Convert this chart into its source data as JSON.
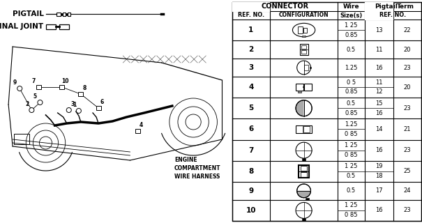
{
  "bg_color": "#ffffff",
  "pigtail_label": "PIGTAIL",
  "terminal_joint_label": "TERMINAL JOINT",
  "engine_label": "ENGINE\nCOMPARTMENT\nWIRE HARNESS",
  "table": {
    "rows": [
      {
        "ref": "1",
        "wire": [
          "1 25",
          "0.85"
        ],
        "pigtail": [
          "13",
          ""
        ],
        "term": "22",
        "ctype": "oval_2pin"
      },
      {
        "ref": "2",
        "wire": [
          "0.5",
          ""
        ],
        "pigtail": [
          "11",
          ""
        ],
        "term": "20",
        "ctype": "rect_2pin_v"
      },
      {
        "ref": "3",
        "wire": [
          "1.25",
          ""
        ],
        "pigtail": [
          "16",
          ""
        ],
        "term": "23",
        "ctype": "circle_1pin"
      },
      {
        "ref": "4",
        "wire": [
          "0 5",
          "0.85"
        ],
        "pigtail": [
          "11",
          "12"
        ],
        "term": "20",
        "ctype": "rect_2pin_h"
      },
      {
        "ref": "5",
        "wire": [
          "0.5",
          "0.85"
        ],
        "pigtail": [
          "15",
          "16"
        ],
        "term": "23",
        "ctype": "circle_half"
      },
      {
        "ref": "6",
        "wire": [
          "1.25",
          "0 85"
        ],
        "pigtail": [
          "14",
          ""
        ],
        "term": "21",
        "ctype": "rect_1pin"
      },
      {
        "ref": "7",
        "wire": [
          "1 25",
          "0 85"
        ],
        "pigtail": [
          "16",
          ""
        ],
        "term": "23",
        "ctype": "circle_4pin"
      },
      {
        "ref": "8",
        "wire": [
          "1 25",
          "0.5"
        ],
        "pigtail": [
          "19",
          "18"
        ],
        "term": "25",
        "ctype": "rect_bold_v"
      },
      {
        "ref": "9",
        "wire": [
          "0.5",
          ""
        ],
        "pigtail": [
          "17",
          ""
        ],
        "term": "24",
        "ctype": "circle_half_tab"
      },
      {
        "ref": "10",
        "wire": [
          "1 25",
          "0 85"
        ],
        "pigtail": [
          "16",
          ""
        ],
        "term": "23",
        "ctype": "circle_4pin2"
      }
    ]
  }
}
